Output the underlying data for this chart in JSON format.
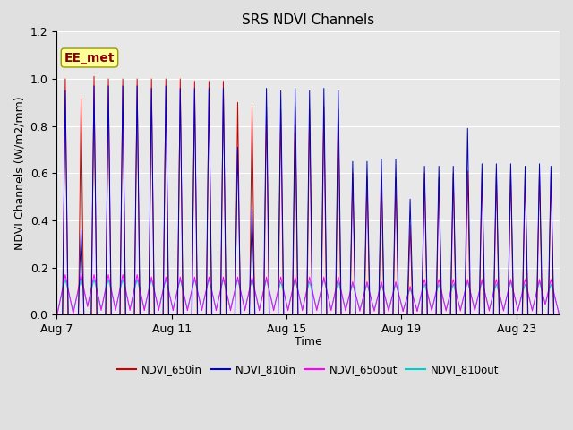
{
  "title": "SRS NDVI Channels",
  "ylabel": "NDVI Channels (W/m2/mm)",
  "xlabel": "Time",
  "annotation": "EE_met",
  "ylim": [
    0.0,
    1.2
  ],
  "yticks": [
    0.0,
    0.2,
    0.4,
    0.6,
    0.8,
    1.0,
    1.2
  ],
  "xtick_labels": [
    "Aug 7",
    "Aug 11",
    "Aug 15",
    "Aug 19",
    "Aug 23"
  ],
  "xtick_positions_day": [
    0,
    4,
    8,
    12,
    16
  ],
  "total_days": 17.5,
  "colors": {
    "NDVI_650in": "#cc0000",
    "NDVI_810in": "#0000cc",
    "NDVI_650out": "#ff00ff",
    "NDVI_810out": "#00cccc"
  },
  "background_color": "#e0e0e0",
  "plot_bg_color": "#e8e8e8",
  "title_fontsize": 11,
  "label_fontsize": 9,
  "tick_fontsize": 9,
  "annotation_fontsize": 10,
  "spike_centers": [
    0.3,
    0.85,
    1.3,
    1.8,
    2.3,
    2.8,
    3.3,
    3.8,
    4.3,
    4.8,
    5.3,
    5.8,
    6.3,
    6.8,
    7.3,
    7.8,
    8.3,
    8.8,
    9.3,
    9.8,
    10.3,
    10.8,
    11.3,
    11.8,
    12.3,
    12.8,
    13.3,
    13.8,
    14.3,
    14.8,
    15.3,
    15.8,
    16.3,
    16.8,
    17.2
  ],
  "peaks_650in": [
    1.0,
    0.92,
    1.01,
    1.0,
    1.0,
    1.0,
    1.0,
    1.0,
    1.0,
    0.99,
    0.99,
    0.99,
    0.9,
    0.88,
    0.88,
    0.87,
    0.88,
    0.87,
    0.88,
    0.87,
    0.6,
    0.59,
    0.59,
    0.58,
    0.38,
    0.6,
    0.58,
    0.6,
    0.61,
    0.6,
    0.6,
    0.61,
    0.6,
    0.61,
    0.6
  ],
  "peaks_810in": [
    0.95,
    0.36,
    0.97,
    0.97,
    0.97,
    0.97,
    0.96,
    0.97,
    0.96,
    0.96,
    0.96,
    0.96,
    0.71,
    0.45,
    0.96,
    0.95,
    0.96,
    0.95,
    0.96,
    0.95,
    0.65,
    0.65,
    0.66,
    0.66,
    0.49,
    0.63,
    0.63,
    0.63,
    0.79,
    0.64,
    0.64,
    0.64,
    0.63,
    0.64,
    0.63
  ],
  "peaks_650out": [
    0.17,
    0.17,
    0.17,
    0.17,
    0.17,
    0.17,
    0.16,
    0.16,
    0.16,
    0.16,
    0.16,
    0.16,
    0.16,
    0.16,
    0.16,
    0.16,
    0.16,
    0.16,
    0.16,
    0.16,
    0.14,
    0.14,
    0.14,
    0.14,
    0.12,
    0.15,
    0.15,
    0.15,
    0.15,
    0.15,
    0.15,
    0.15,
    0.15,
    0.15,
    0.15
  ],
  "peaks_810out": [
    0.15,
    0.15,
    0.15,
    0.15,
    0.15,
    0.15,
    0.15,
    0.15,
    0.15,
    0.15,
    0.15,
    0.15,
    0.15,
    0.15,
    0.15,
    0.14,
    0.15,
    0.14,
    0.15,
    0.14,
    0.13,
    0.13,
    0.13,
    0.13,
    0.11,
    0.13,
    0.13,
    0.13,
    0.14,
    0.14,
    0.13,
    0.14,
    0.13,
    0.14,
    0.13
  ]
}
